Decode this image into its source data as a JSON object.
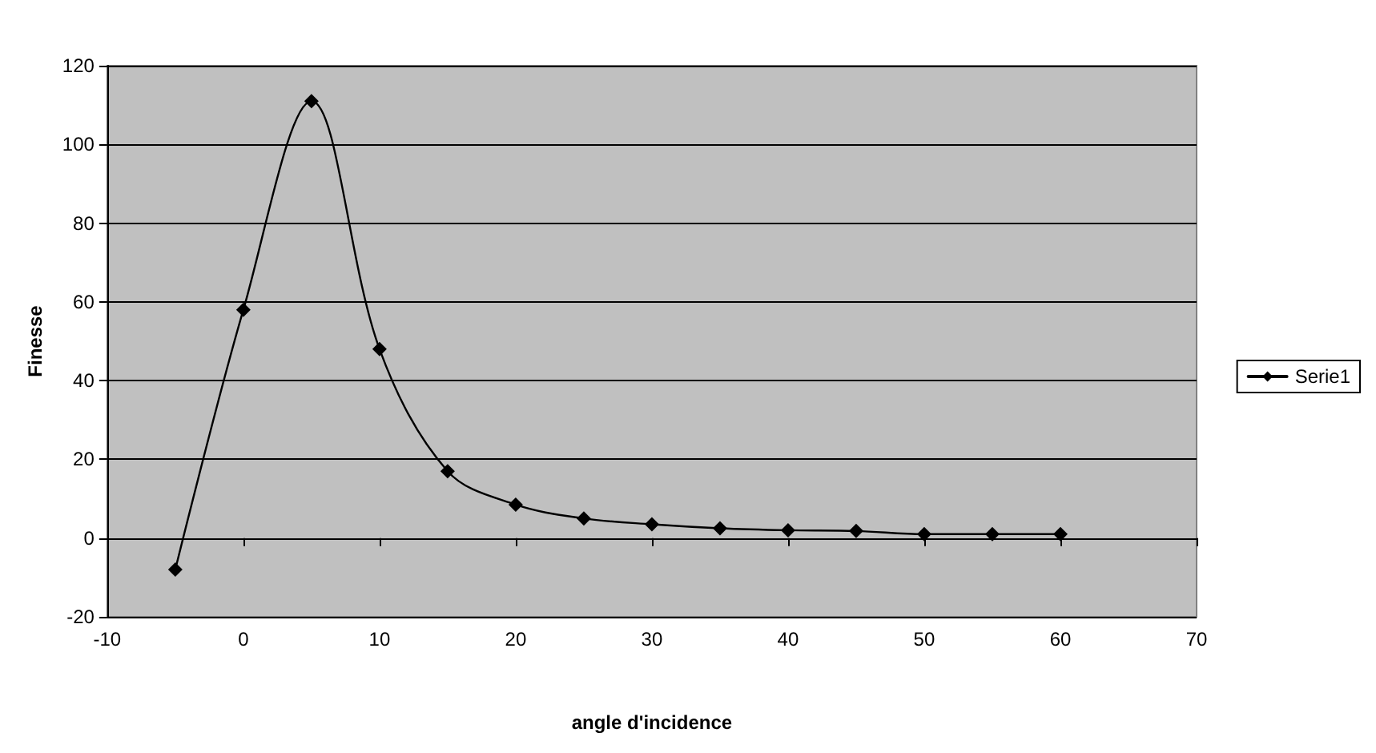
{
  "chart_data": {
    "type": "line",
    "xlabel": "angle d'incidence",
    "ylabel": "Finesse",
    "x": [
      -5,
      0,
      5,
      10,
      15,
      20,
      25,
      30,
      35,
      40,
      45,
      50,
      55,
      60
    ],
    "series": [
      {
        "name": "Serie1",
        "color": "#000000",
        "values": [
          -8,
          58,
          111,
          48,
          17,
          8.5,
          5,
          3.5,
          2.5,
          2,
          1.8,
          1,
          1,
          1
        ]
      }
    ],
    "xlim": [
      -10,
      70
    ],
    "xticks": [
      -10,
      0,
      10,
      20,
      30,
      40,
      50,
      60,
      70
    ],
    "ylim": [
      -20,
      120
    ],
    "yticks": [
      -20,
      0,
      20,
      40,
      60,
      80,
      100,
      120
    ],
    "grid": "y",
    "legend": "right",
    "marker": "diamond",
    "line_style": "solid"
  }
}
